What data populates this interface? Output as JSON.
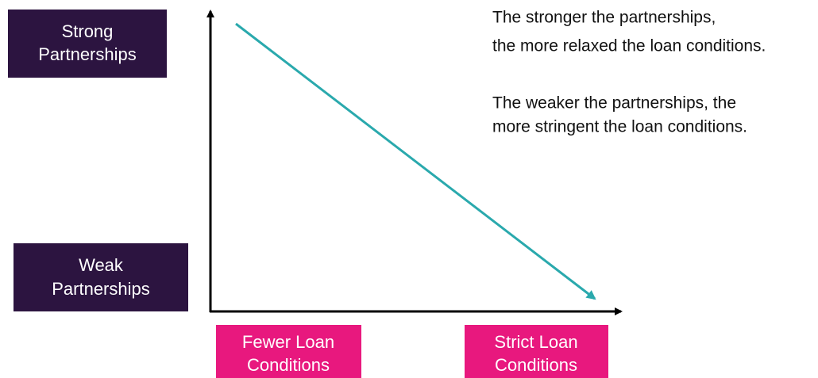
{
  "y_axis_labels": [
    {
      "lines": [
        "Strong",
        "Partnerships"
      ]
    },
    {
      "lines": [
        "Weak",
        "Partnerships"
      ]
    }
  ],
  "x_axis_labels": [
    {
      "lines": [
        "Fewer Loan",
        "Conditions"
      ]
    },
    {
      "lines": [
        "Strict Loan",
        "Conditions"
      ]
    }
  ],
  "notes": [
    {
      "lines": [
        "The stronger the partnerships,",
        "the more relaxed the loan conditions."
      ]
    },
    {
      "lines": [
        "The weaker the partnerships, the",
        "more stringent the loan conditions."
      ]
    }
  ]
}
